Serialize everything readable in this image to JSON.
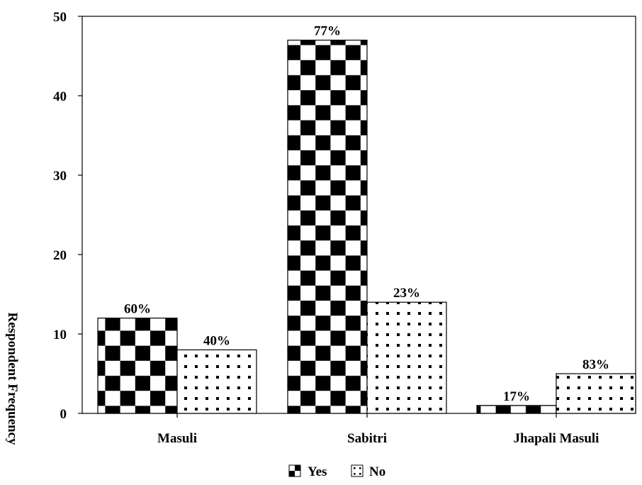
{
  "chart_data": {
    "type": "bar",
    "categories": [
      "Masuli",
      "Sabitri",
      "Jhapali Masuli"
    ],
    "series": [
      {
        "name": "Yes",
        "values": [
          12,
          47,
          1
        ],
        "labels": [
          "60%",
          "77%",
          "17%"
        ],
        "pattern": "checker"
      },
      {
        "name": "No",
        "values": [
          8,
          14,
          5
        ],
        "labels": [
          "40%",
          "23%",
          "83%"
        ],
        "pattern": "dots"
      }
    ],
    "title": "",
    "xlabel": "",
    "ylabel": "Respondent Frequency",
    "ylim": [
      0,
      50
    ],
    "yticks": [
      0,
      10,
      20,
      30,
      40,
      50
    ],
    "grid": false,
    "legend_position": "bottom-center",
    "colors": {
      "ink": "#000000",
      "paper": "#ffffff"
    }
  }
}
